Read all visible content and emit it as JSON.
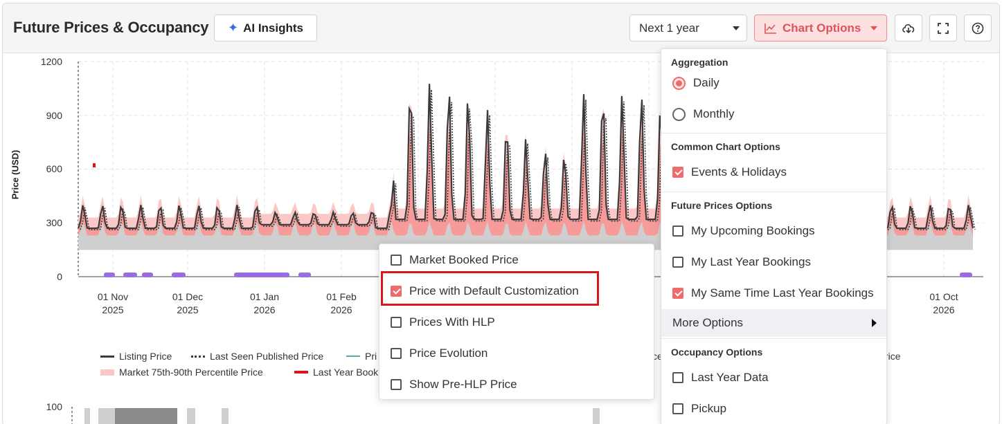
{
  "header": {
    "title": "Future Prices & Occupancy",
    "ai_button": "AI Insights",
    "period_select": "Next 1 year",
    "chart_options_button": "Chart Options",
    "icons": [
      "download-cloud-icon",
      "fullscreen-icon",
      "help-icon"
    ]
  },
  "colors": {
    "accent": "#ee6b6b",
    "listing_line": "#3a3a3a",
    "market_band_light": "#fbc8c8",
    "market_band_mid": "#f79a9a",
    "market_band_grey": "#cfcfcf",
    "events_marker": "#9a6be3",
    "last_year_booking": "#d8161c",
    "teal_line": "#5fa8a6"
  },
  "chart_data": {
    "type": "line",
    "title": "",
    "xlabel": "",
    "ylabel": "Price (USD)",
    "ylim": [
      0,
      1200
    ],
    "yticks": [
      "1200",
      "900",
      "600",
      "300",
      "0"
    ],
    "xticks": [
      {
        "line1": "01 Nov",
        "line2": "2025"
      },
      {
        "line1": "01 Dec",
        "line2": "2025"
      },
      {
        "line1": "01 Jan",
        "line2": "2026"
      },
      {
        "line1": "01 Feb",
        "line2": "2026"
      },
      {
        "line1": "01 Oct",
        "line2": "2026"
      }
    ],
    "legend": [
      {
        "label": "Listing Price",
        "style": "solid"
      },
      {
        "label": "Last Seen Published Price",
        "style": "dotted"
      },
      {
        "label": "Pri",
        "style": "teal"
      },
      {
        "label": "Market 75th-90th Percentile Price",
        "style": "band"
      },
      {
        "label": "Last Year Book",
        "style": "red"
      }
    ],
    "legend_fragments": [
      "ce",
      "rice"
    ],
    "occupancy_ytick": "100"
  },
  "chart_options_menu": {
    "aggregation_title": "Aggregation",
    "aggregation": [
      {
        "label": "Daily",
        "selected": true
      },
      {
        "label": "Monthly",
        "selected": false
      }
    ],
    "common_title": "Common Chart Options",
    "common": [
      {
        "label": "Events & Holidays",
        "checked": true
      }
    ],
    "future_title": "Future Prices Options",
    "future": [
      {
        "label": "My Upcoming Bookings",
        "checked": false
      },
      {
        "label": "My Last Year Bookings",
        "checked": false
      },
      {
        "label": "My Same Time Last Year Bookings",
        "checked": true
      }
    ],
    "more_options": "More Options",
    "occupancy_title": "Occupancy Options",
    "occupancy": [
      {
        "label": "Last Year Data",
        "checked": false
      },
      {
        "label": "Pickup",
        "checked": false
      }
    ]
  },
  "more_options_menu": [
    {
      "label": "Market Booked Price",
      "checked": false
    },
    {
      "label": "Price with Default Customization",
      "checked": true
    },
    {
      "label": "Prices With HLP",
      "checked": false
    },
    {
      "label": "Price Evolution",
      "checked": false
    },
    {
      "label": "Show Pre-HLP Price",
      "checked": false
    }
  ]
}
